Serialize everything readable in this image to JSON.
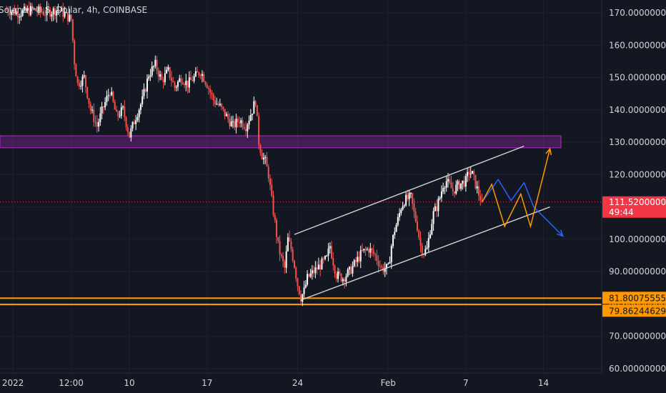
{
  "header": {
    "title": "Solana / U.S. Dollar, 4h, COINBASE"
  },
  "price_tags": {
    "current_price": "111.52000000",
    "countdown": "49:44",
    "level_high": "81.80075555",
    "level_low": "79.86244629"
  },
  "colors": {
    "background": "#131722",
    "grid": "#1e222d",
    "up": "#ffffff",
    "down": "#ef5350",
    "purple_zone": "#9c27b0",
    "orange": "#ff9800",
    "blue_path": "#2962ff",
    "channel": "#d1d4dc",
    "current_tag": "#f23645"
  },
  "chart_data": {
    "type": "candlestick",
    "y_axis": {
      "min": 60,
      "max": 172,
      "ticks": [
        "170.00000000",
        "160.00000000",
        "150.00000000",
        "140.00000000",
        "130.00000000",
        "120.00000000",
        "110.00000000",
        "100.00000000",
        "90.00000000",
        "80.00000000",
        "70.00000000",
        "60.00000000"
      ],
      "tick_values": [
        170,
        160,
        150,
        140,
        130,
        120,
        110,
        100,
        90,
        80,
        70,
        60
      ]
    },
    "x_axis": {
      "ticks": [
        {
          "label": "2022",
          "t": 2
        },
        {
          "label": "12:00",
          "t": 20
        },
        {
          "label": "10",
          "t": 38
        },
        {
          "label": "17",
          "t": 62
        },
        {
          "label": "24",
          "t": 90
        },
        {
          "label": "Feb",
          "t": 118
        },
        {
          "label": "7",
          "t": 142
        },
        {
          "label": "14",
          "t": 166
        }
      ],
      "range": [
        -2,
        184
      ]
    },
    "anchors": [
      [
        0,
        171
      ],
      [
        4,
        170
      ],
      [
        8,
        171
      ],
      [
        12,
        170
      ],
      [
        16,
        171
      ],
      [
        20,
        168
      ],
      [
        21,
        155
      ],
      [
        22,
        148
      ],
      [
        24,
        150
      ],
      [
        26,
        140
      ],
      [
        28,
        135
      ],
      [
        30,
        141
      ],
      [
        32,
        146
      ],
      [
        34,
        138
      ],
      [
        36,
        140
      ],
      [
        38,
        132
      ],
      [
        40,
        138
      ],
      [
        42,
        143
      ],
      [
        44,
        151
      ],
      [
        46,
        154
      ],
      [
        48,
        149
      ],
      [
        50,
        152
      ],
      [
        52,
        147
      ],
      [
        54,
        150
      ],
      [
        56,
        148
      ],
      [
        58,
        150
      ],
      [
        60,
        152
      ],
      [
        62,
        148
      ],
      [
        64,
        143
      ],
      [
        66,
        141
      ],
      [
        68,
        138
      ],
      [
        70,
        135
      ],
      [
        72,
        137
      ],
      [
        74,
        135
      ],
      [
        76,
        140
      ],
      [
        77,
        143
      ],
      [
        78,
        130
      ],
      [
        79,
        126
      ],
      [
        80,
        124
      ],
      [
        81,
        120
      ],
      [
        82,
        112
      ],
      [
        83,
        105
      ],
      [
        84,
        98
      ],
      [
        85,
        94
      ],
      [
        86,
        91
      ],
      [
        87,
        100
      ],
      [
        88,
        97
      ],
      [
        89,
        92
      ],
      [
        90,
        86
      ],
      [
        91,
        82
      ],
      [
        92,
        84
      ],
      [
        93,
        88
      ],
      [
        95,
        90
      ],
      [
        97,
        92
      ],
      [
        99,
        94
      ],
      [
        100,
        98
      ],
      [
        101,
        93
      ],
      [
        102,
        89
      ],
      [
        104,
        88
      ],
      [
        106,
        90
      ],
      [
        108,
        93
      ],
      [
        110,
        96
      ],
      [
        112,
        97
      ],
      [
        114,
        95
      ],
      [
        116,
        91
      ],
      [
        118,
        91
      ],
      [
        119,
        98
      ],
      [
        120,
        103
      ],
      [
        121,
        106
      ],
      [
        122,
        110
      ],
      [
        123,
        112
      ],
      [
        125,
        113
      ],
      [
        126,
        108
      ],
      [
        127,
        104
      ],
      [
        128,
        98
      ],
      [
        129,
        96
      ],
      [
        130,
        97
      ],
      [
        131,
        103
      ],
      [
        132,
        108
      ],
      [
        133,
        110
      ],
      [
        134,
        113
      ],
      [
        135,
        117
      ],
      [
        136,
        118
      ],
      [
        138,
        115
      ],
      [
        140,
        117
      ],
      [
        142,
        118
      ],
      [
        143,
        121
      ],
      [
        144,
        120
      ],
      [
        145,
        117
      ],
      [
        146,
        114
      ],
      [
        147,
        111.5
      ]
    ],
    "levels": [
      {
        "name": "level-high",
        "value": 81.80075555
      },
      {
        "name": "level-low",
        "value": 79.86244629
      }
    ],
    "current_price": 111.52,
    "purple_zone": {
      "from": 128.3,
      "to": 132.0
    },
    "channel": {
      "upper": [
        [
          89,
          101.5
        ],
        [
          160,
          128.8
        ]
      ],
      "lower": [
        [
          91,
          81.2
        ],
        [
          168,
          110.0
        ]
      ]
    },
    "projections": {
      "orange": [
        [
          147,
          111.5
        ],
        [
          150,
          117
        ],
        [
          154,
          104
        ],
        [
          159,
          114
        ],
        [
          162,
          104
        ],
        [
          168,
          128
        ]
      ],
      "blue": [
        [
          147,
          111.5
        ],
        [
          152,
          118.5
        ],
        [
          156,
          112
        ],
        [
          160,
          117.5
        ],
        [
          163,
          110
        ],
        [
          172,
          101
        ]
      ]
    }
  }
}
